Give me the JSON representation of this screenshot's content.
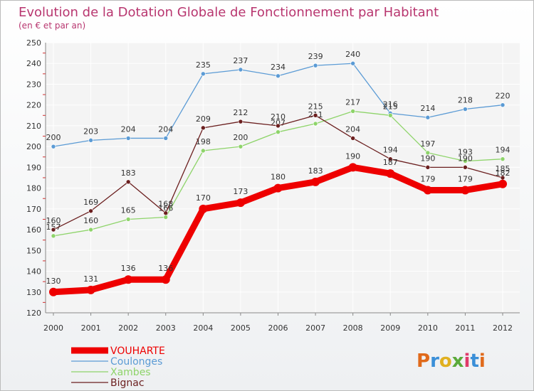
{
  "chart_data": {
    "type": "line",
    "title": "Evolution de la Dotation Globale de Fonctionnement par Habitant",
    "subtitle": "(en € et par an)",
    "xlabel": "",
    "ylabel": "",
    "x": [
      "2000",
      "2001",
      "2002",
      "2003",
      "2004",
      "2005",
      "2006",
      "2007",
      "2008",
      "2009",
      "2010",
      "2011",
      "2012"
    ],
    "ylim": [
      120,
      250
    ],
    "yticks": [
      120,
      130,
      140,
      150,
      160,
      170,
      180,
      190,
      200,
      210,
      220,
      230,
      240,
      250
    ],
    "grid": true,
    "legend_position": "bottom-left",
    "series": [
      {
        "name": "VOUHARTE",
        "color": "#ee0000",
        "values": [
          130,
          131,
          136,
          136,
          170,
          173,
          180,
          183,
          190,
          187,
          179,
          179,
          182
        ]
      },
      {
        "name": "Coulonges",
        "color": "#5b9bd5",
        "values": [
          200,
          203,
          204,
          204,
          235,
          237,
          234,
          239,
          240,
          216,
          214,
          218,
          220
        ]
      },
      {
        "name": "Xambes",
        "color": "#8ed46a",
        "values": [
          157,
          160,
          165,
          166,
          198,
          200,
          207,
          211,
          217,
          215,
          197,
          193,
          194
        ]
      },
      {
        "name": "Bignac",
        "color": "#6b1f1f",
        "values": [
          160,
          169,
          183,
          168,
          209,
          212,
          210,
          215,
          204,
          194,
          190,
          190,
          185
        ]
      }
    ]
  },
  "logo": {
    "text": "Proxiti",
    "colors": [
      "#e06a1b",
      "#3a8fd8",
      "#e0b020",
      "#5aaa3a",
      "#e03a6a",
      "#3a8fd8",
      "#e06a1b"
    ]
  }
}
